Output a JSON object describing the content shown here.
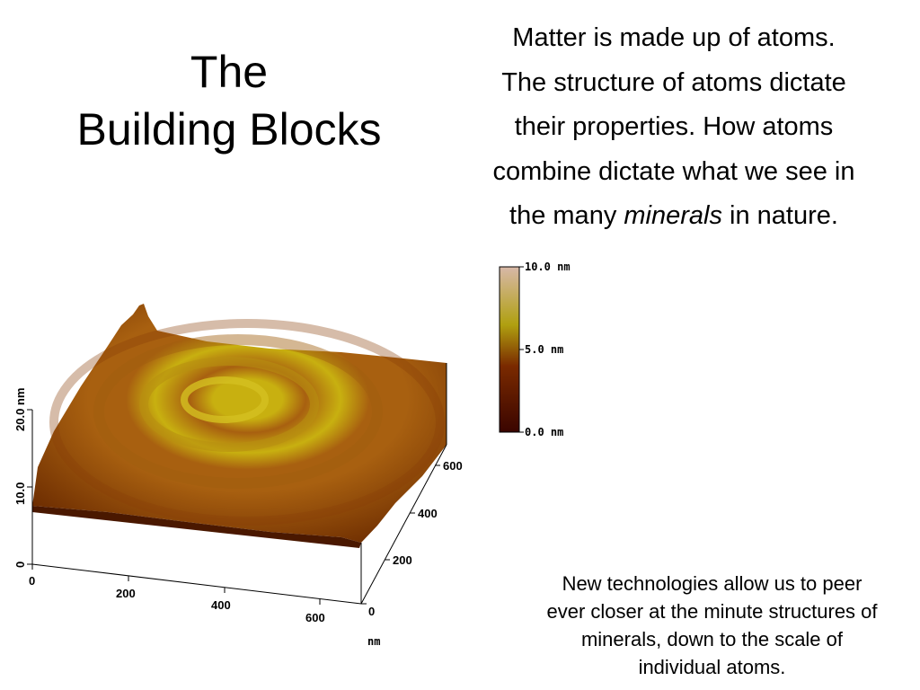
{
  "slide": {
    "title_lines": [
      "The",
      "Building Blocks"
    ],
    "intro_lines": [
      "Matter is made up of atoms.",
      "The structure of atoms dictate",
      "their properties. How atoms",
      "combine dictate what we see in"
    ],
    "intro_last": {
      "before": "the many ",
      "emphasis": "minerals",
      "after": " in nature."
    },
    "note_lines": [
      "New technologies allow us to peer",
      "ever closer at the minute structures of",
      "minerals, down to the scale of",
      "individual atoms."
    ]
  },
  "afm_image": {
    "colorbar": {
      "labels": [
        "10.0 nm",
        "5.0 nm",
        "0.0 nm"
      ],
      "colors": [
        "#d8b8a8",
        "#b0a010",
        "#7a2a00",
        "#3a0500"
      ]
    },
    "z_axis": {
      "label": "20.0 nm",
      "ticks": [
        "10.0",
        "0"
      ]
    },
    "x_axis": {
      "ticks": [
        "0",
        "200",
        "400",
        "600"
      ]
    },
    "y_axis": {
      "ticks": [
        "0",
        "200",
        "400",
        "600"
      ],
      "unit": "nm"
    },
    "surface_colors": {
      "light": "#c8b010",
      "mid": "#a86010",
      "dark": "#6a2a00"
    }
  }
}
